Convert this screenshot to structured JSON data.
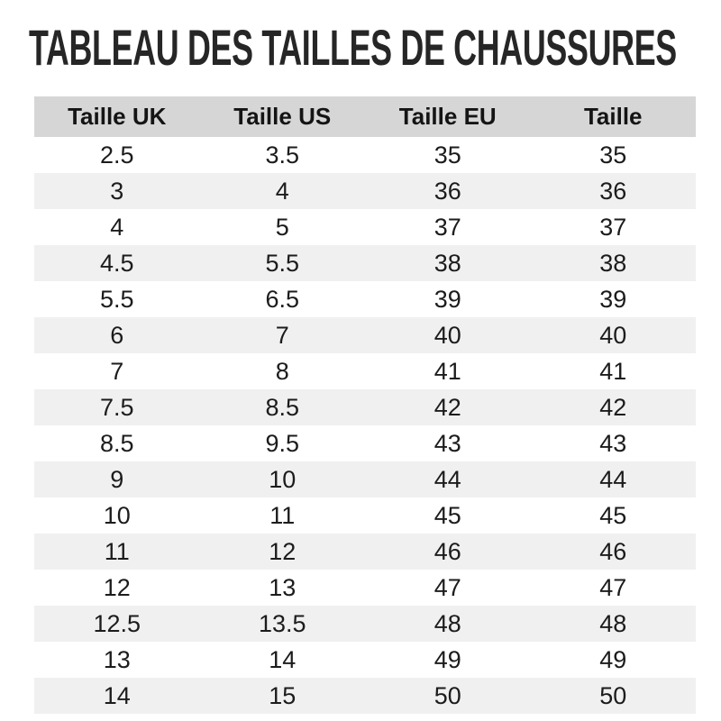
{
  "chart_data": {
    "type": "table",
    "title": "TABLEAU DES TAILLES DE CHAUSSURES",
    "columns": [
      "Taille UK",
      "Taille US",
      "Taille EU",
      "Taille"
    ],
    "rows": [
      [
        "2.5",
        "3.5",
        "35",
        "35"
      ],
      [
        "3",
        "4",
        "36",
        "36"
      ],
      [
        "4",
        "5",
        "37",
        "37"
      ],
      [
        "4.5",
        "5.5",
        "38",
        "38"
      ],
      [
        "5.5",
        "6.5",
        "39",
        "39"
      ],
      [
        "6",
        "7",
        "40",
        "40"
      ],
      [
        "7",
        "8",
        "41",
        "41"
      ],
      [
        "7.5",
        "8.5",
        "42",
        "42"
      ],
      [
        "8.5",
        "9.5",
        "43",
        "43"
      ],
      [
        "9",
        "10",
        "44",
        "44"
      ],
      [
        "10",
        "11",
        "45",
        "45"
      ],
      [
        "11",
        "12",
        "46",
        "46"
      ],
      [
        "12",
        "13",
        "47",
        "47"
      ],
      [
        "12.5",
        "13.5",
        "48",
        "48"
      ],
      [
        "13",
        "14",
        "49",
        "49"
      ],
      [
        "14",
        "15",
        "50",
        "50"
      ]
    ],
    "layout": {
      "zebra_striping": true,
      "grid": false,
      "text_align": "center"
    }
  },
  "colors": {
    "header_bg": "#d6d6d6",
    "row_alt_bg": "#f0f0f0",
    "text": "#1c1c1c",
    "title": "#262626",
    "page_bg": "#ffffff"
  }
}
